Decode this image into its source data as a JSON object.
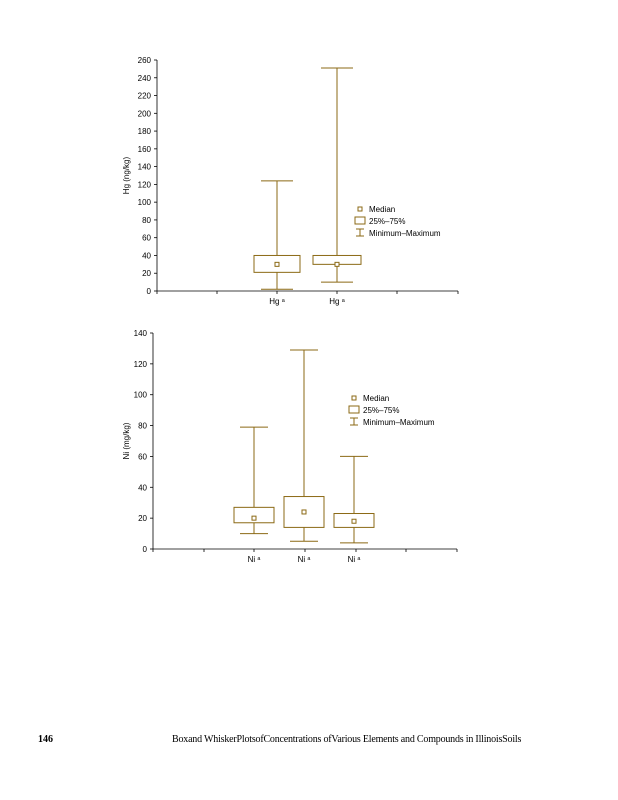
{
  "page": {
    "page_number": "146",
    "footer_caption": "Boxand WhiskerPlotsofConcentrations ofVarious Elements and Compounds in IllinoisSoils"
  },
  "colors": {
    "box": "#8B6914",
    "axis": "#000000"
  },
  "legend": {
    "median": "Median",
    "box": "25%–75%",
    "whisker": "Minimum–Maximum"
  },
  "chart_data": [
    {
      "type": "box",
      "title": "",
      "ylabel": "Hg (ng/kg)",
      "ylim": [
        0,
        260
      ],
      "yticks": [
        0,
        20,
        40,
        60,
        80,
        100,
        120,
        140,
        160,
        180,
        200,
        220,
        240,
        260
      ],
      "categories": [
        "Hg ᵃ",
        "Hg ᵃ"
      ],
      "boxes": [
        {
          "name": "Hg ᵃ",
          "min": 2,
          "q1": 21,
          "median": 30,
          "q3": 40,
          "max": 124
        },
        {
          "name": "Hg ᵃ",
          "min": 10,
          "q1": 30,
          "median": 30,
          "q3": 40,
          "max": 251
        }
      ],
      "legend_position": "right"
    },
    {
      "type": "box",
      "title": "",
      "ylabel": "Ni (mg/kg)",
      "ylim": [
        0,
        140
      ],
      "yticks": [
        0,
        20,
        40,
        60,
        80,
        100,
        120,
        140
      ],
      "categories": [
        "Ni ᵃ",
        "Ni ᵃ",
        "Ni ᵃ"
      ],
      "boxes": [
        {
          "name": "Ni ᵃ",
          "min": 10,
          "q1": 17,
          "median": 20,
          "q3": 27,
          "max": 79
        },
        {
          "name": "Ni ᵃ",
          "min": 5,
          "q1": 14,
          "median": 24,
          "q3": 34,
          "max": 129
        },
        {
          "name": "Ni ᵃ",
          "min": 4,
          "q1": 14,
          "median": 18,
          "q3": 23,
          "max": 60
        }
      ],
      "legend_position": "right"
    }
  ]
}
